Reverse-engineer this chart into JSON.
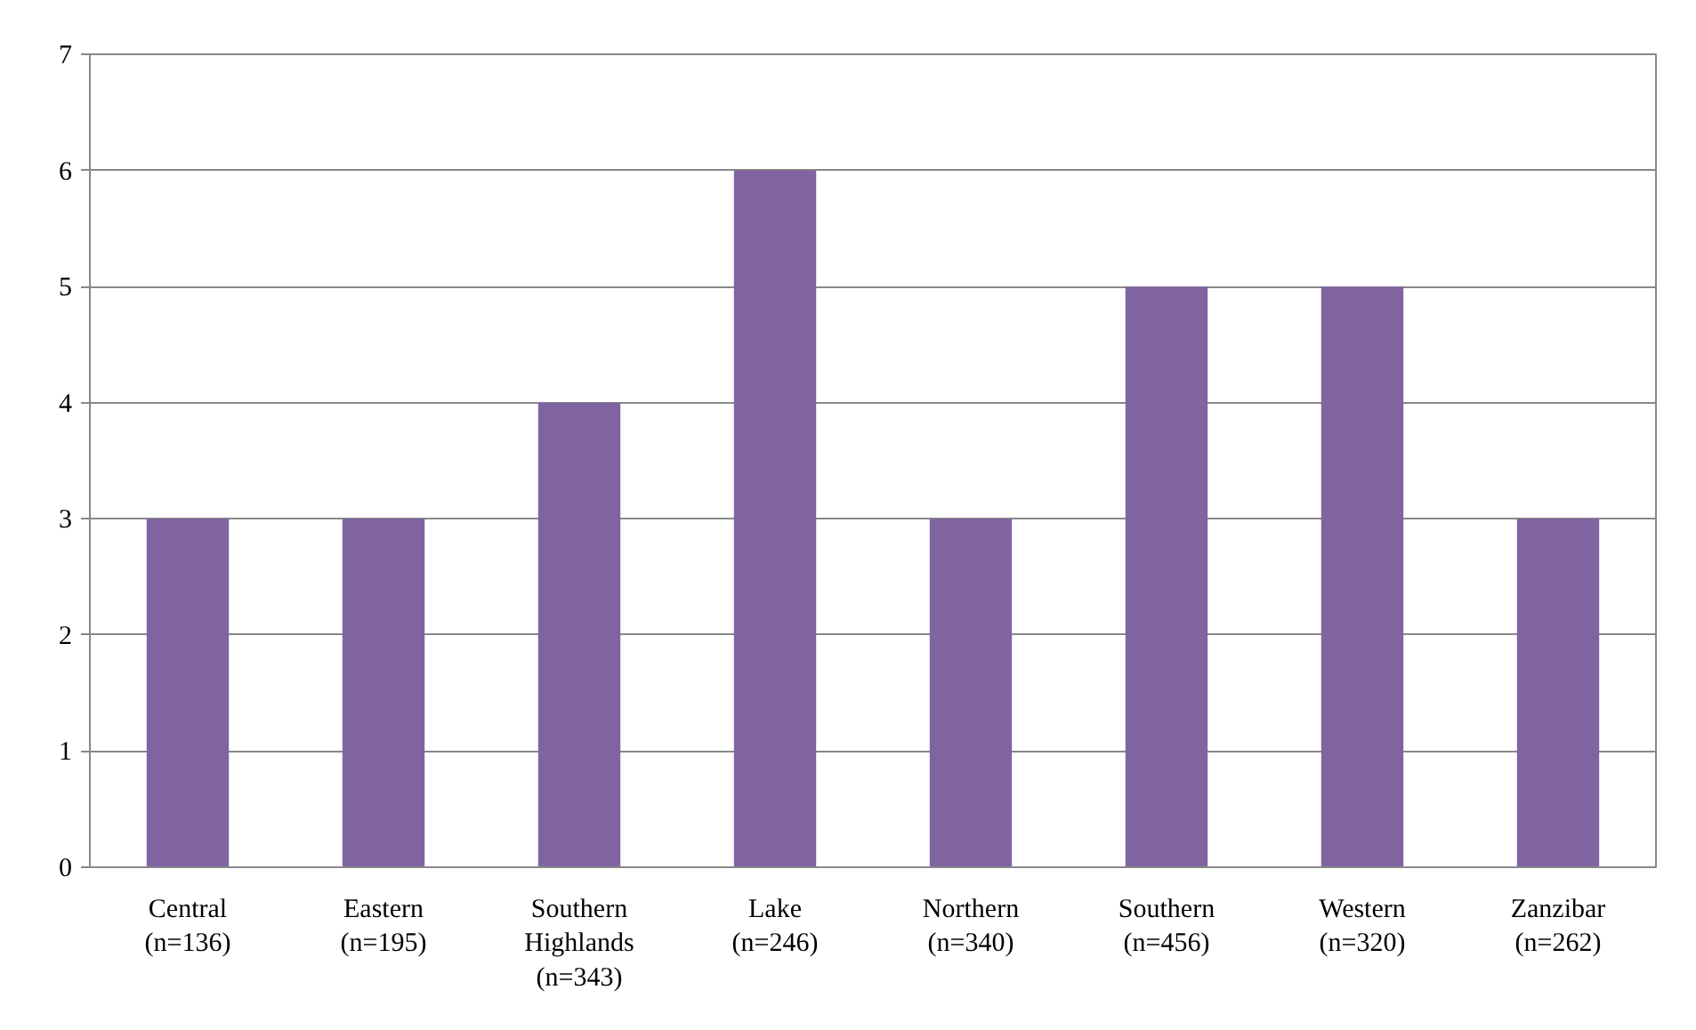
{
  "chart_data": {
    "type": "bar",
    "categories": [
      "Central\n(n=136)",
      "Eastern\n(n=195)",
      "Southern\nHighlands\n(n=343)",
      "Lake\n(n=246)",
      "Northern\n(n=340)",
      "Southern\n(n=456)",
      "Western\n(n=320)",
      "Zanzibar\n(n=262)"
    ],
    "values": [
      3,
      3,
      4,
      6,
      3,
      5,
      5,
      3
    ],
    "color": "#8064a2",
    "ylim": [
      0,
      7
    ],
    "yticks": [
      0,
      1,
      2,
      3,
      4,
      5,
      6,
      7
    ],
    "grid": "y"
  }
}
